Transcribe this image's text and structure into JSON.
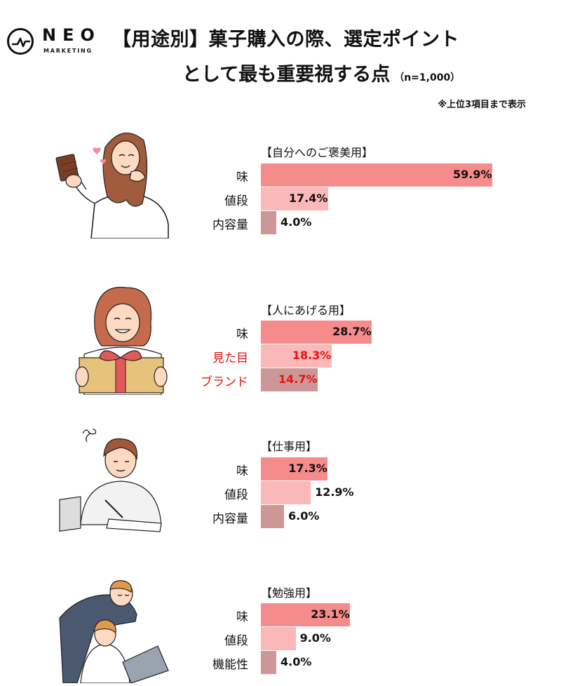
{
  "logo": {
    "brand": "NEO",
    "sub": "MARKETING"
  },
  "title": {
    "line1": "【用途別】菓子購入の際、選定ポイント",
    "line2": "として最も重要視する点",
    "sample": "（n=1,000）"
  },
  "note": "※上位3項目まで表示",
  "colors": {
    "rank1": "#f68b8b",
    "rank2": "#fbb8b8",
    "rank3": "#cd9797",
    "highlight_text": "#e8120c"
  },
  "chart_data": [
    {
      "type": "bar",
      "orientation": "horizontal",
      "xlim": [
        0,
        100
      ],
      "title": "【自分へのご褒美用】",
      "categories": [
        "味",
        "値段",
        "内容量"
      ],
      "values": [
        59.9,
        17.4,
        4.0
      ],
      "labels": [
        "59.9%",
        "17.4%",
        "4.0%"
      ]
    },
    {
      "type": "bar",
      "orientation": "horizontal",
      "xlim": [
        0,
        100
      ],
      "title": "【人にあげる用】",
      "categories": [
        "味",
        "見た目",
        "ブランド"
      ],
      "values": [
        28.7,
        18.3,
        14.7
      ],
      "labels": [
        "28.7%",
        "18.3%",
        "14.7%"
      ],
      "highlighted_categories": [
        "見た目",
        "ブランド"
      ]
    },
    {
      "type": "bar",
      "orientation": "horizontal",
      "xlim": [
        0,
        100
      ],
      "title": "【仕事用】",
      "categories": [
        "味",
        "値段",
        "内容量"
      ],
      "values": [
        17.3,
        12.9,
        6.0
      ],
      "labels": [
        "17.3%",
        "12.9%",
        "6.0%"
      ]
    },
    {
      "type": "bar",
      "orientation": "horizontal",
      "xlim": [
        0,
        100
      ],
      "title": "【勉強用】",
      "categories": [
        "味",
        "値段",
        "機能性"
      ],
      "values": [
        23.1,
        9.0,
        4.0
      ],
      "labels": [
        "23.1%",
        "9.0%",
        "4.0%"
      ]
    }
  ]
}
